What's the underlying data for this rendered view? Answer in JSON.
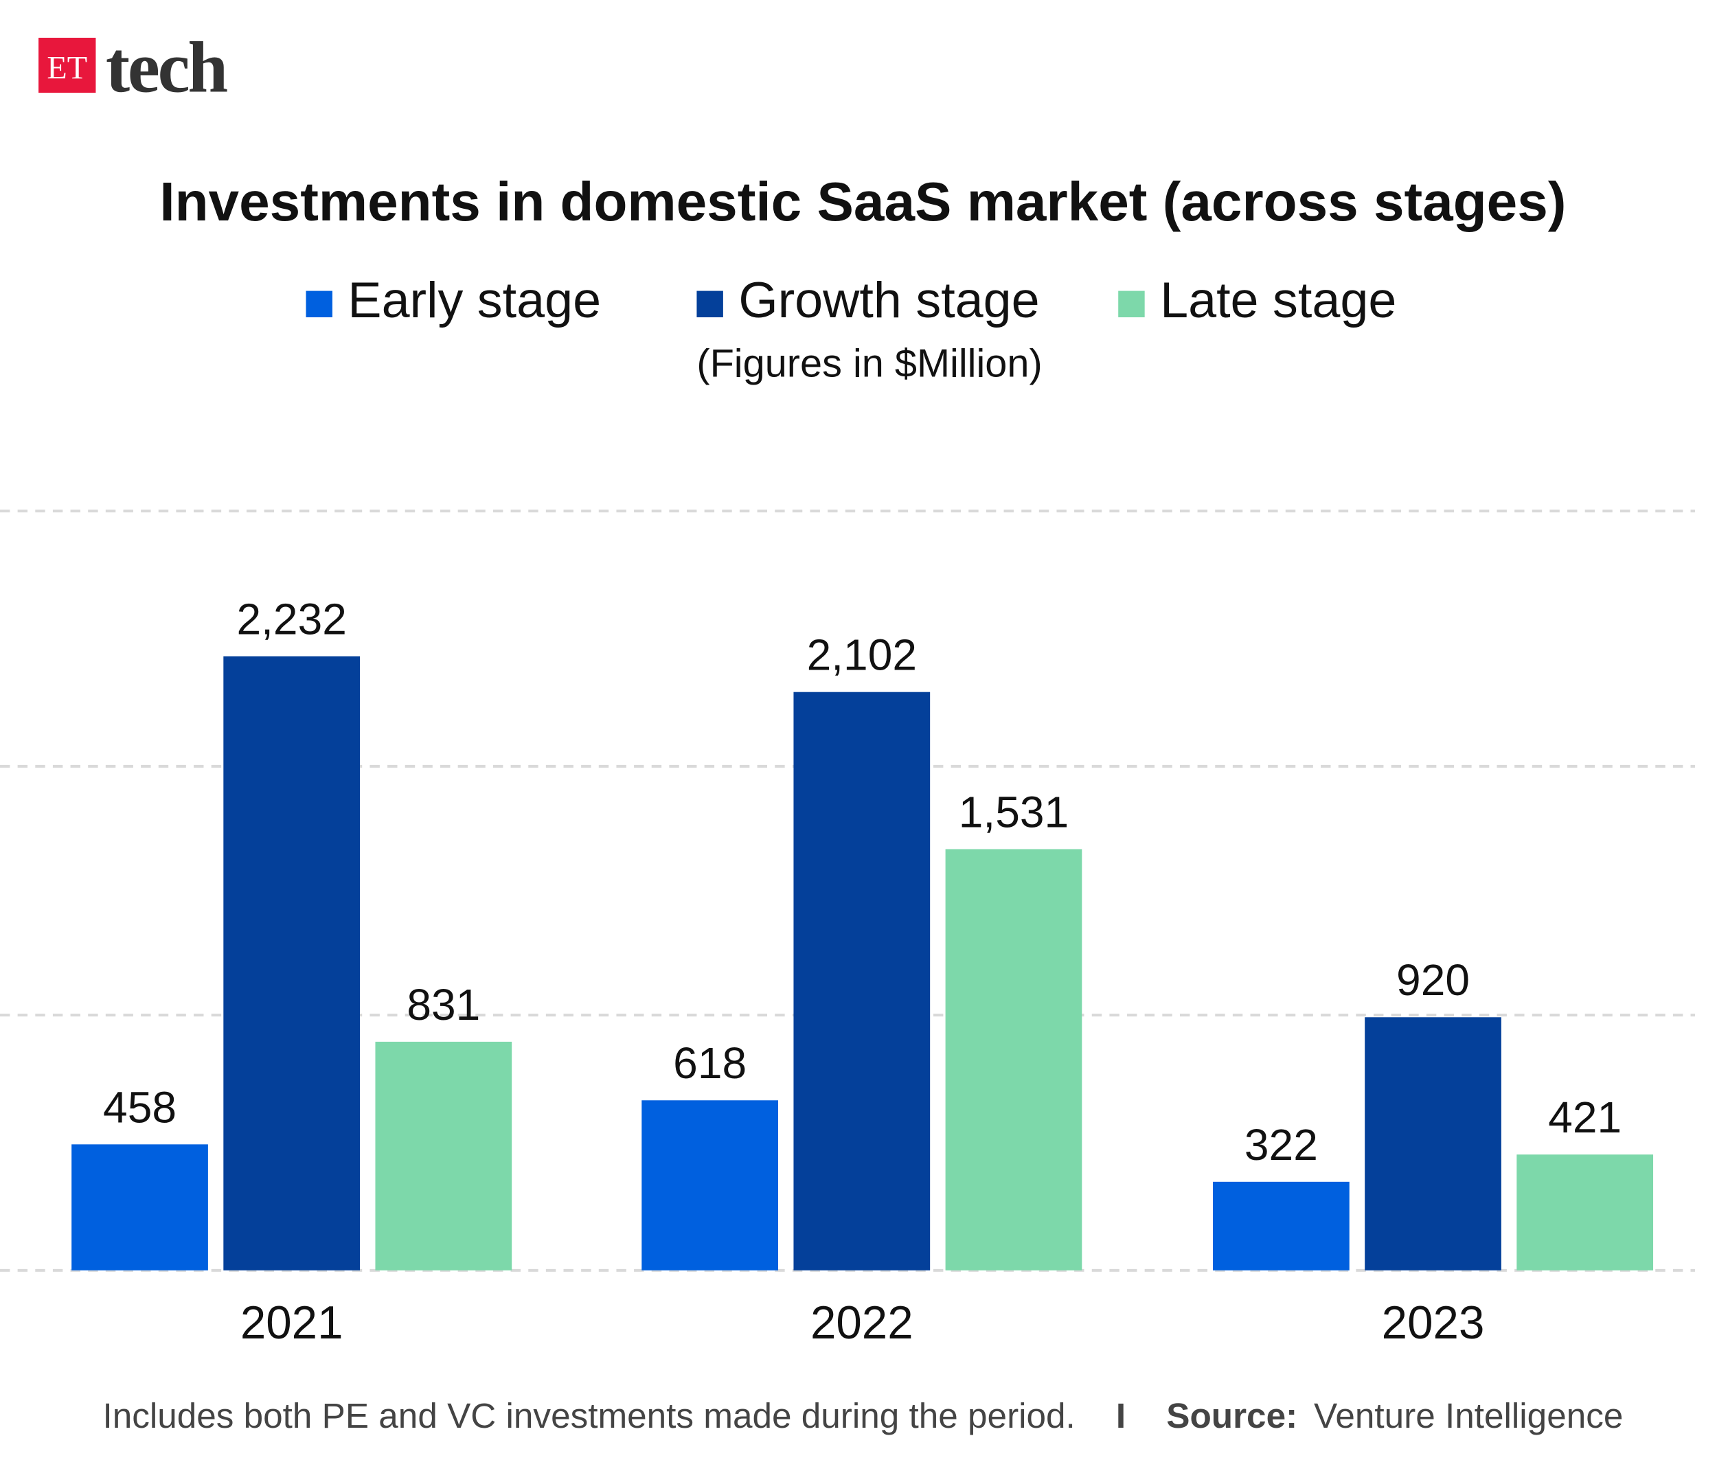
{
  "logo": {
    "badge": "ET",
    "word": "tech",
    "badge_color": "#e8173c"
  },
  "chart_data": {
    "type": "bar",
    "title": "Investments in domestic SaaS market (across stages)",
    "subtitle": "(Figures in $Million)",
    "categories": [
      "2021",
      "2022",
      "2023"
    ],
    "series": [
      {
        "name": "Early stage",
        "color": "#0060df",
        "values": [
          458,
          618,
          322
        ],
        "labels": [
          "458",
          "618",
          "322"
        ]
      },
      {
        "name": "Growth stage",
        "color": "#04409a",
        "values": [
          2232,
          2102,
          920
        ],
        "labels": [
          "2,232",
          "2,102",
          "920"
        ]
      },
      {
        "name": "Late stage",
        "color": "#7dd8aa",
        "values": [
          831,
          1531,
          421
        ],
        "labels": [
          "831",
          "1,531",
          "421"
        ]
      }
    ],
    "ylim": [
      0,
      2760
    ],
    "grid": true,
    "legend_position": "top",
    "xlabel": "",
    "ylabel": ""
  },
  "footer": {
    "note": "Includes both PE and VC investments made during the period.",
    "separator": "I",
    "source_label": "Source:",
    "source": "Venture Intelligence"
  }
}
